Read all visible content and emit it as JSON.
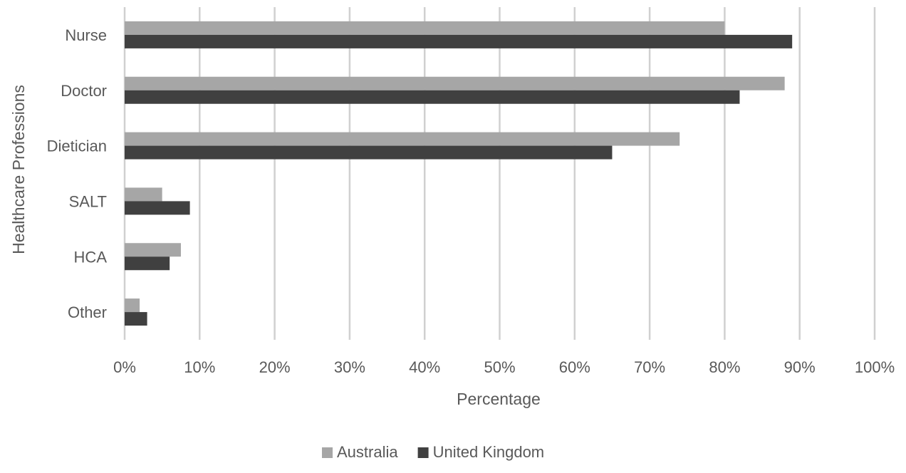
{
  "chart_data": {
    "type": "bar",
    "orientation": "horizontal",
    "categories": [
      "Nurse",
      "Doctor",
      "Dietician",
      "SALT",
      "HCA",
      "Other"
    ],
    "series": [
      {
        "name": "Australia",
        "color": "#a6a6a6",
        "values": [
          80,
          88,
          74,
          5,
          7.5,
          2
        ]
      },
      {
        "name": "United Kingdom",
        "color": "#404040",
        "values": [
          89,
          82,
          65,
          8.7,
          6,
          3
        ]
      }
    ],
    "xlabel": "Percentage",
    "ylabel": "Healthcare Professions",
    "xlim": [
      0,
      100
    ],
    "xticks": [
      "0%",
      "10%",
      "20%",
      "30%",
      "40%",
      "50%",
      "60%",
      "70%",
      "80%",
      "90%",
      "100%"
    ],
    "grid": "vertical",
    "legend": "bottom-center"
  }
}
